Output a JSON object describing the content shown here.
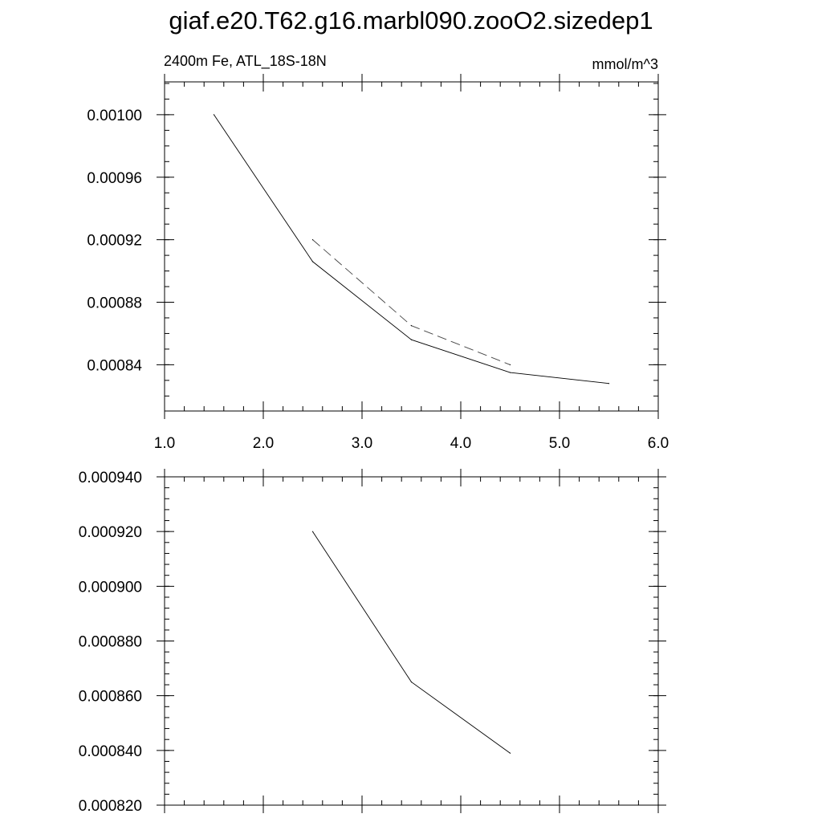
{
  "title": "giaf.e20.T62.g16.marbl090.zooO2.sizedep1",
  "chart_data": [
    {
      "type": "line",
      "subtitle_left": "2400m Fe, ATL_18S-18N",
      "subtitle_right": "mmol/m^3",
      "xlim": [
        1.0,
        6.0
      ],
      "ylim": [
        0.0008104,
        0.001021
      ],
      "x_tick_labels": [
        "1.0",
        "2.0",
        "3.0",
        "4.0",
        "5.0",
        "6.0"
      ],
      "x_tick_values": [
        1.0,
        2.0,
        3.0,
        4.0,
        5.0,
        6.0
      ],
      "y_tick_labels": [
        "0.00100",
        "0.00096",
        "0.00092",
        "0.00088",
        "0.00084"
      ],
      "y_tick_values": [
        0.001,
        0.00096,
        0.00092,
        0.00088,
        0.00084
      ],
      "y_minor_step": 1e-05,
      "x_minor_step": 0.2,
      "series": [
        {
          "style": "solid",
          "x": [
            1.5,
            2.5,
            3.5,
            4.5,
            5.5
          ],
          "values": [
            0.001,
            0.000906,
            0.000856,
            0.000835,
            0.000828
          ]
        },
        {
          "style": "dashed",
          "x": [
            2.5,
            3.5,
            4.5
          ],
          "values": [
            0.00092,
            0.000865,
            0.00084
          ]
        }
      ]
    },
    {
      "type": "line",
      "xlim": [
        1.0,
        6.0
      ],
      "ylim": [
        0.00082,
        0.00094
      ],
      "y_tick_labels": [
        "0.000940",
        "0.000920",
        "0.000900",
        "0.000880",
        "0.000860",
        "0.000840",
        "0.000820"
      ],
      "y_tick_values": [
        0.00094,
        0.00092,
        0.0009,
        0.00088,
        0.00086,
        0.00084,
        0.00082
      ],
      "y_minor_step": 4e-06,
      "x_tick_values": [
        1.0,
        2.0,
        3.0,
        4.0,
        5.0,
        6.0
      ],
      "x_minor_step": 0.2,
      "series": [
        {
          "style": "solid",
          "x": [
            2.5,
            3.5,
            4.5
          ],
          "values": [
            0.00092,
            0.000865,
            0.000839
          ]
        }
      ]
    }
  ]
}
